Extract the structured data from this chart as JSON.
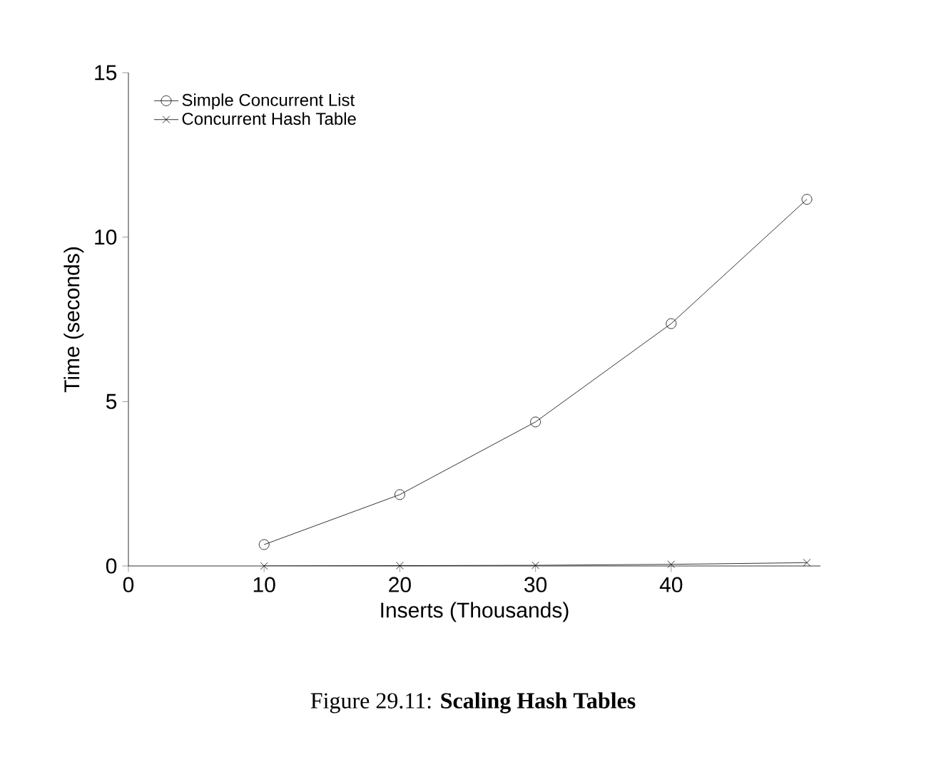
{
  "chart_data": {
    "type": "line",
    "xlabel": "Inserts (Thousands)",
    "ylabel": "Time (seconds)",
    "x": [
      10,
      20,
      30,
      40,
      50
    ],
    "series": [
      {
        "name": "Simple Concurrent List",
        "color": "#000000",
        "marker": "circle",
        "values": [
          0.65,
          2.17,
          4.38,
          7.37,
          11.15
        ]
      },
      {
        "name": "Concurrent Hash Table",
        "color": "#000000",
        "marker": "cross",
        "values": [
          0.0,
          0.01,
          0.02,
          0.05,
          0.1
        ]
      }
    ],
    "xlim": [
      0,
      51
    ],
    "xticks": [
      0,
      10,
      20,
      30,
      40
    ],
    "ylim": [
      0,
      15
    ],
    "yticks": [
      0,
      5,
      10,
      15
    ],
    "legend": "top left",
    "annotations": [
      "Figure 29.11: **Scaling Hash Tables**"
    ]
  }
}
